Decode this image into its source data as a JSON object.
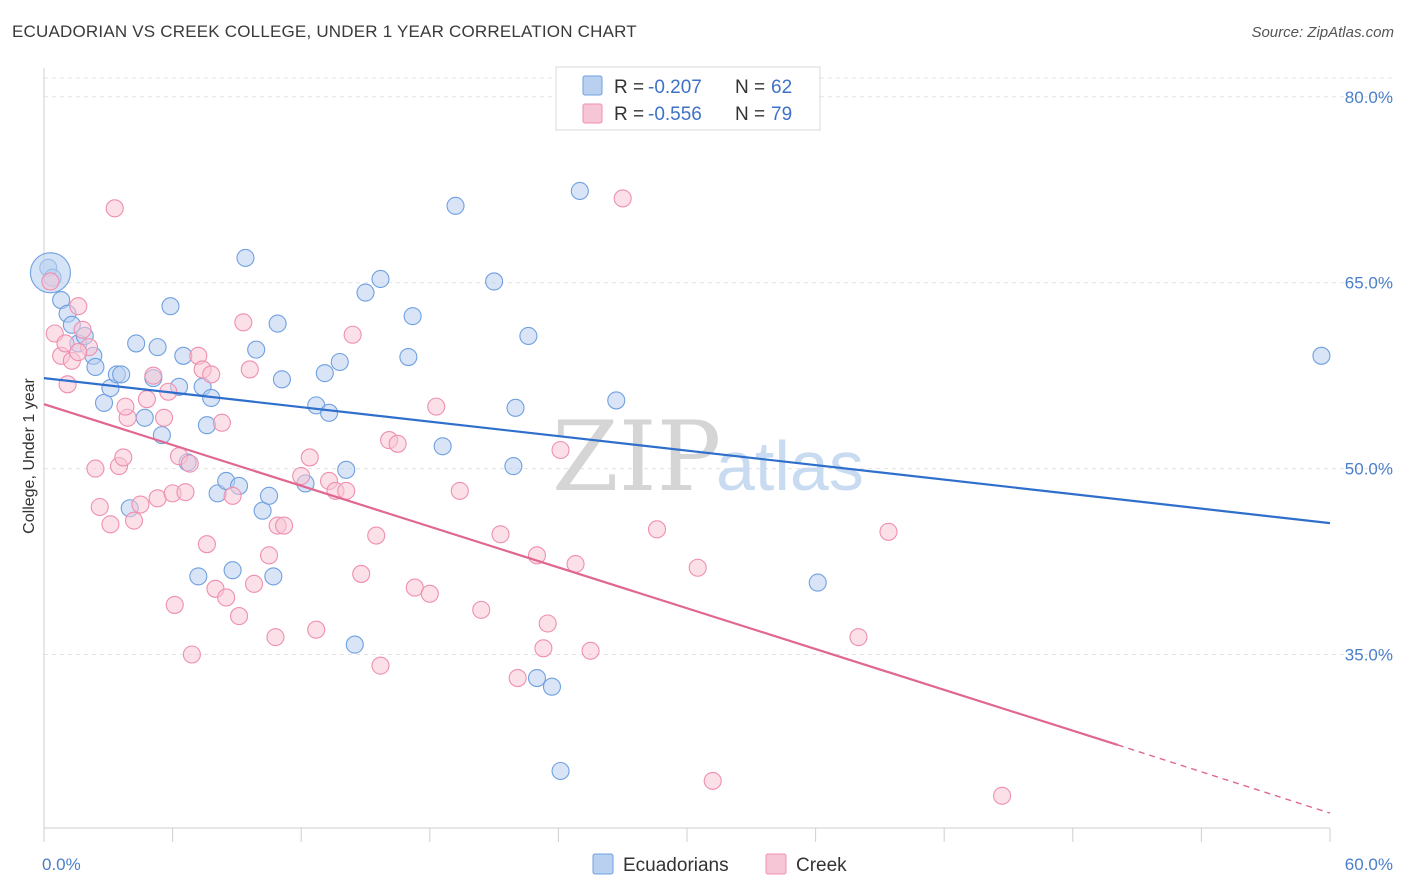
{
  "title": "ECUADORIAN VS CREEK COLLEGE, UNDER 1 YEAR CORRELATION CHART",
  "source": "Source: ZipAtlas.com",
  "watermark": {
    "zip": "ZIP",
    "atlas": "atlas"
  },
  "legend": {
    "r_label": "R = ",
    "n_label": "N = ",
    "rows": [
      {
        "r": "-0.207",
        "n": "62",
        "color": "#6fa0e0"
      },
      {
        "r": "-0.556",
        "n": "79",
        "color": "#ef8fb0"
      }
    ]
  },
  "chart_data": {
    "type": "scatter",
    "ylabel": "College, Under 1 year",
    "xlim": [
      0,
      60
    ],
    "ylim": [
      21,
      82
    ],
    "x_ticks": [
      {
        "value": 0,
        "label": "0.0%"
      },
      {
        "value": 60,
        "label": "60.0%"
      }
    ],
    "y_ticks": [
      {
        "value": 80,
        "label": "80.0%"
      },
      {
        "value": 65,
        "label": "65.0%"
      },
      {
        "value": 50,
        "label": "50.0%"
      },
      {
        "value": 35,
        "label": "35.0%"
      }
    ],
    "grid": true,
    "series": [
      {
        "name": "Ecuadorians",
        "color": "#6fa0e0",
        "fill": "#b9d0f0",
        "trend": {
          "x": [
            0,
            60
          ],
          "y": [
            57.3,
            45.6
          ]
        },
        "points": [
          [
            0.2,
            66.2
          ],
          [
            0.4,
            65.4
          ],
          [
            0.8,
            63.6
          ],
          [
            1.1,
            62.5
          ],
          [
            1.3,
            61.6
          ],
          [
            1.6,
            60.1
          ],
          [
            1.9,
            60.7
          ],
          [
            2.3,
            59.1
          ],
          [
            2.4,
            58.2
          ],
          [
            2.8,
            55.3
          ],
          [
            3.1,
            56.5
          ],
          [
            3.4,
            57.6
          ],
          [
            3.6,
            57.6
          ],
          [
            4.0,
            46.8
          ],
          [
            4.3,
            60.1
          ],
          [
            4.7,
            54.1
          ],
          [
            5.1,
            57.3
          ],
          [
            5.3,
            59.8
          ],
          [
            5.5,
            52.7
          ],
          [
            5.9,
            63.1
          ],
          [
            6.3,
            56.6
          ],
          [
            6.5,
            59.1
          ],
          [
            6.7,
            50.5
          ],
          [
            7.2,
            41.3
          ],
          [
            7.4,
            56.6
          ],
          [
            7.6,
            53.5
          ],
          [
            7.8,
            55.7
          ],
          [
            8.1,
            48.0
          ],
          [
            8.5,
            49.0
          ],
          [
            8.8,
            41.8
          ],
          [
            9.1,
            48.6
          ],
          [
            9.4,
            67.0
          ],
          [
            9.9,
            59.6
          ],
          [
            10.2,
            46.6
          ],
          [
            10.5,
            47.8
          ],
          [
            10.7,
            41.3
          ],
          [
            10.9,
            61.7
          ],
          [
            11.1,
            57.2
          ],
          [
            12.2,
            48.8
          ],
          [
            12.7,
            55.1
          ],
          [
            13.1,
            57.7
          ],
          [
            13.3,
            54.5
          ],
          [
            13.8,
            58.6
          ],
          [
            14.1,
            49.9
          ],
          [
            14.5,
            35.8
          ],
          [
            15.0,
            64.2
          ],
          [
            15.7,
            65.3
          ],
          [
            17.0,
            59.0
          ],
          [
            17.2,
            62.3
          ],
          [
            18.6,
            51.8
          ],
          [
            19.2,
            71.2
          ],
          [
            21.0,
            65.1
          ],
          [
            21.9,
            50.2
          ],
          [
            22.0,
            54.9
          ],
          [
            22.6,
            60.7
          ],
          [
            23.0,
            33.1
          ],
          [
            23.7,
            32.4
          ],
          [
            24.1,
            25.6
          ],
          [
            25.0,
            72.4
          ],
          [
            26.7,
            55.5
          ],
          [
            36.1,
            40.8
          ],
          [
            59.6,
            59.1
          ]
        ],
        "large_point": [
          0.3,
          65.8
        ]
      },
      {
        "name": "Creek",
        "color": "#ef8fb0",
        "fill": "#f7c6d6",
        "trend": {
          "x": [
            0,
            50.1
          ],
          "y": [
            55.2,
            27.7
          ]
        },
        "trend_extension": {
          "x": [
            50.1,
            60
          ],
          "y": [
            27.7,
            22.2
          ]
        },
        "points": [
          [
            0.3,
            65.1
          ],
          [
            0.5,
            60.9
          ],
          [
            0.8,
            59.1
          ],
          [
            1.0,
            60.1
          ],
          [
            1.1,
            56.8
          ],
          [
            1.3,
            58.7
          ],
          [
            1.6,
            63.1
          ],
          [
            1.8,
            61.2
          ],
          [
            2.1,
            59.8
          ],
          [
            2.4,
            50.0
          ],
          [
            2.6,
            46.9
          ],
          [
            3.1,
            45.5
          ],
          [
            3.3,
            71.0
          ],
          [
            3.5,
            50.2
          ],
          [
            3.7,
            50.9
          ],
          [
            3.9,
            54.1
          ],
          [
            4.2,
            45.8
          ],
          [
            4.5,
            47.1
          ],
          [
            4.8,
            55.6
          ],
          [
            5.1,
            57.5
          ],
          [
            5.3,
            47.6
          ],
          [
            5.6,
            54.1
          ],
          [
            5.8,
            56.2
          ],
          [
            6.0,
            48.0
          ],
          [
            6.1,
            39.0
          ],
          [
            6.3,
            51.0
          ],
          [
            6.6,
            48.1
          ],
          [
            6.8,
            50.4
          ],
          [
            6.9,
            35.0
          ],
          [
            7.2,
            59.1
          ],
          [
            7.4,
            58.0
          ],
          [
            7.6,
            43.9
          ],
          [
            7.8,
            57.6
          ],
          [
            8.0,
            40.3
          ],
          [
            8.3,
            53.7
          ],
          [
            8.5,
            39.6
          ],
          [
            8.8,
            47.8
          ],
          [
            9.1,
            38.1
          ],
          [
            9.3,
            61.8
          ],
          [
            9.6,
            58.0
          ],
          [
            9.8,
            40.7
          ],
          [
            10.5,
            43.0
          ],
          [
            10.8,
            36.4
          ],
          [
            10.9,
            45.4
          ],
          [
            11.2,
            45.4
          ],
          [
            12.0,
            49.4
          ],
          [
            12.4,
            50.9
          ],
          [
            12.7,
            37.0
          ],
          [
            13.3,
            49.0
          ],
          [
            13.6,
            48.2
          ],
          [
            14.1,
            48.2
          ],
          [
            14.4,
            60.8
          ],
          [
            14.8,
            41.5
          ],
          [
            15.5,
            44.6
          ],
          [
            15.7,
            34.1
          ],
          [
            16.1,
            52.3
          ],
          [
            16.5,
            52.0
          ],
          [
            17.3,
            40.4
          ],
          [
            18.0,
            39.9
          ],
          [
            18.3,
            55.0
          ],
          [
            19.4,
            48.2
          ],
          [
            20.4,
            38.6
          ],
          [
            21.3,
            44.7
          ],
          [
            22.1,
            33.1
          ],
          [
            23.0,
            43.0
          ],
          [
            23.3,
            35.5
          ],
          [
            23.5,
            37.5
          ],
          [
            24.1,
            51.5
          ],
          [
            24.8,
            42.3
          ],
          [
            25.5,
            35.3
          ],
          [
            27.0,
            71.8
          ],
          [
            28.6,
            45.1
          ],
          [
            30.5,
            42.0
          ],
          [
            31.2,
            24.8
          ],
          [
            38.0,
            36.4
          ],
          [
            39.4,
            44.9
          ],
          [
            44.7,
            23.6
          ],
          [
            1.6,
            59.4
          ],
          [
            3.8,
            55.0
          ]
        ]
      }
    ]
  }
}
